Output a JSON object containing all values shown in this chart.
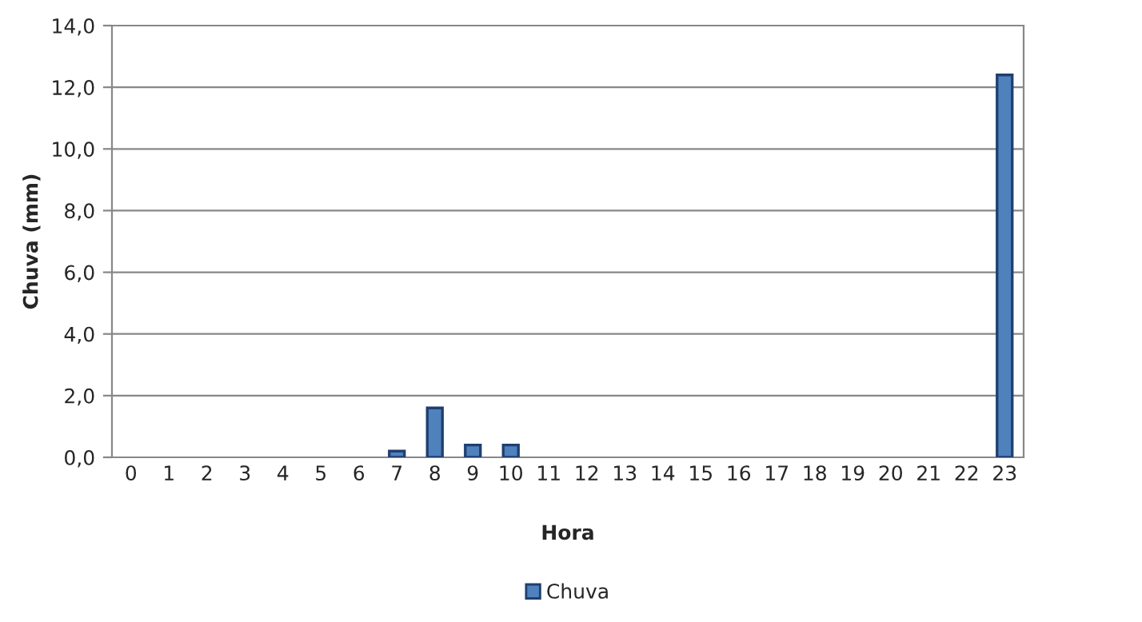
{
  "chart_data": {
    "type": "bar",
    "xlabel": "Hora",
    "ylabel": "Chuva (mm)",
    "categories": [
      "0",
      "1",
      "2",
      "3",
      "4",
      "5",
      "6",
      "7",
      "8",
      "9",
      "10",
      "11",
      "12",
      "13",
      "14",
      "15",
      "16",
      "17",
      "18",
      "19",
      "20",
      "21",
      "22",
      "23"
    ],
    "series": [
      {
        "name": "Chuva",
        "color": "#4f81bd",
        "values": [
          0,
          0,
          0,
          0,
          0,
          0,
          0,
          0.2,
          1.6,
          0.4,
          0.4,
          0,
          0,
          0,
          0,
          0,
          0,
          0,
          0,
          0,
          0,
          0,
          0,
          12.4
        ]
      }
    ],
    "ylim": [
      0,
      14
    ],
    "yticks": [
      {
        "value": 0,
        "label": "0,0"
      },
      {
        "value": 2,
        "label": "2,0"
      },
      {
        "value": 4,
        "label": "4,0"
      },
      {
        "value": 6,
        "label": "6,0"
      },
      {
        "value": 8,
        "label": "8,0"
      },
      {
        "value": 10,
        "label": "10,0"
      },
      {
        "value": 12,
        "label": "12,0"
      },
      {
        "value": 14,
        "label": "14,0"
      }
    ],
    "grid": "y",
    "legend": "bottom"
  }
}
